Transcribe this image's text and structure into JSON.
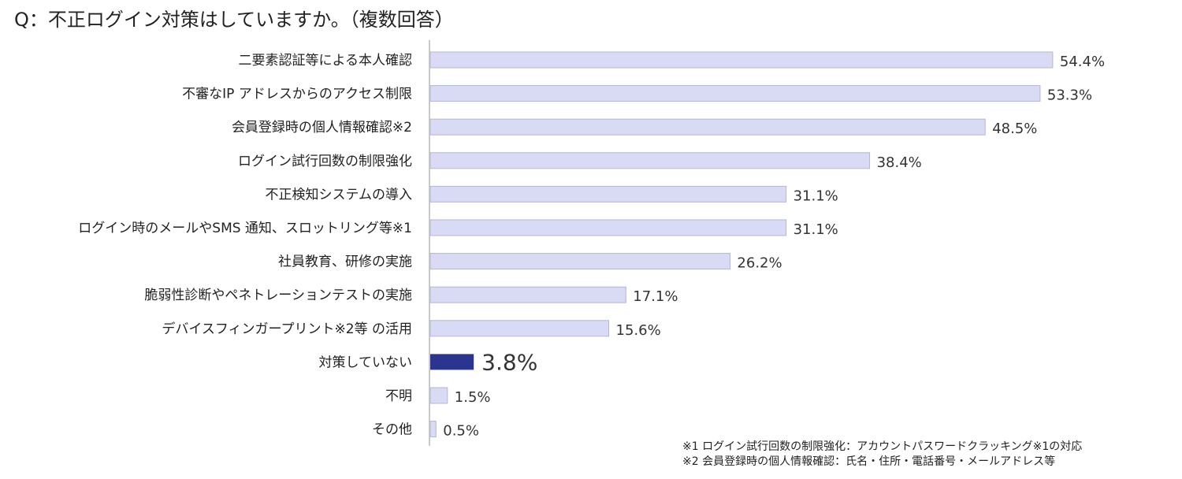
{
  "title": "Q：不正ログイン対策はしていますか。（複数回答）",
  "chart_data": {
    "type": "bar",
    "orientation": "horizontal",
    "categories": [
      "二要素認証等による本人確認",
      "不審なIP アドレスからのアクセス制限",
      "会員登録時の個人情報確認※2",
      "ログイン試行回数の制限強化",
      "不正検知システムの導入",
      "ログイン時のメールやSMS 通知、スロットリング等※1",
      "社員教育、研修の実施",
      "脆弱性診断やペネトレーションテストの実施",
      "デバイスフィンガープリント※2等 の活用",
      "対策していない",
      "不明",
      "その他"
    ],
    "values": [
      54.4,
      53.3,
      48.5,
      38.4,
      31.1,
      31.1,
      26.2,
      17.1,
      15.6,
      3.8,
      1.5,
      0.5
    ],
    "value_labels": [
      "54.4%",
      "53.3%",
      "48.5%",
      "38.4%",
      "31.1%",
      "31.1%",
      "26.2%",
      "17.1%",
      "15.6%",
      "3.8%",
      "1.5%",
      "0.5%"
    ],
    "highlight_index": 9,
    "xlim": [
      0,
      60
    ],
    "grid": false,
    "colors": {
      "bar": "#d9daf3",
      "bar_border": "#b4b6d6",
      "highlight": "#2b3590",
      "axis": "#c8c8c8",
      "text": "#222222",
      "value_text": "#333333"
    }
  },
  "footnotes": [
    "※1 ログイン試行回数の制限強化：アカウントパスワードクラッキング※1の対応",
    "※2 会員登録時の個人情報確認：氏名・住所・電話番号・メールアドレス等"
  ]
}
